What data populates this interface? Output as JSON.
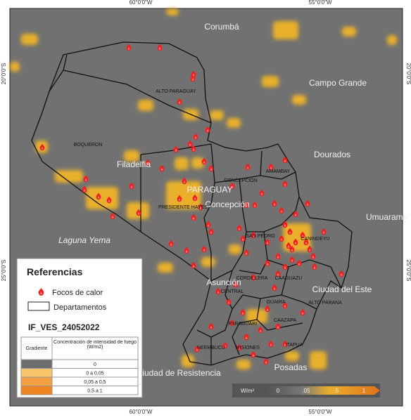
{
  "coordinates": {
    "top": [
      "60°0'0\"W",
      "55°0'0\"W"
    ],
    "bottom": [
      "60°0'0\"W",
      "55°0'0\"W"
    ],
    "left": [
      "20°0'0\"S",
      "25°0'0\"S"
    ],
    "right": [
      "20°0'0\"S",
      "25°0'0\"S"
    ]
  },
  "places": [
    "Corumbá",
    "Campo Grande",
    "Dourados",
    "Umuarama",
    "Filadelfia",
    "PARAGUAY",
    "Concepción",
    "Asunción",
    "Ciudad del Este",
    "Posadas",
    "ciudad de Resistencia",
    "Laguna Yema"
  ],
  "departments": [
    "ALTO PARAGUAY",
    "BOQUERON",
    "PRESIDENTE HAYES",
    "CONCEPCION",
    "AMAMBAY",
    "SAN PEDRO",
    "CANINDEYU",
    "CORDILLERA",
    "CAAGUAZU",
    "CENTRAL",
    "GUAIRA",
    "ALTO PARANA",
    "CAAZAPA",
    "PARAGUARI",
    "ITAPUA",
    "MISIONES",
    "NEEMBUCU"
  ],
  "legend": {
    "title": "Referencias",
    "items": [
      "Focos de calor",
      "Departamentos"
    ],
    "layer": "IF_VES_24052022",
    "table": {
      "headers": [
        "Gradiente",
        "Concentración de intensidad de fuego (W/m2)"
      ],
      "rows": [
        "0",
        "0 a 0,05",
        "0,05 a 0,5",
        "0,5 a 1"
      ]
    }
  },
  "colorbar": {
    "unit": "W/m²",
    "labels": [
      "0",
      ".05",
      ".5",
      "1"
    ]
  }
}
